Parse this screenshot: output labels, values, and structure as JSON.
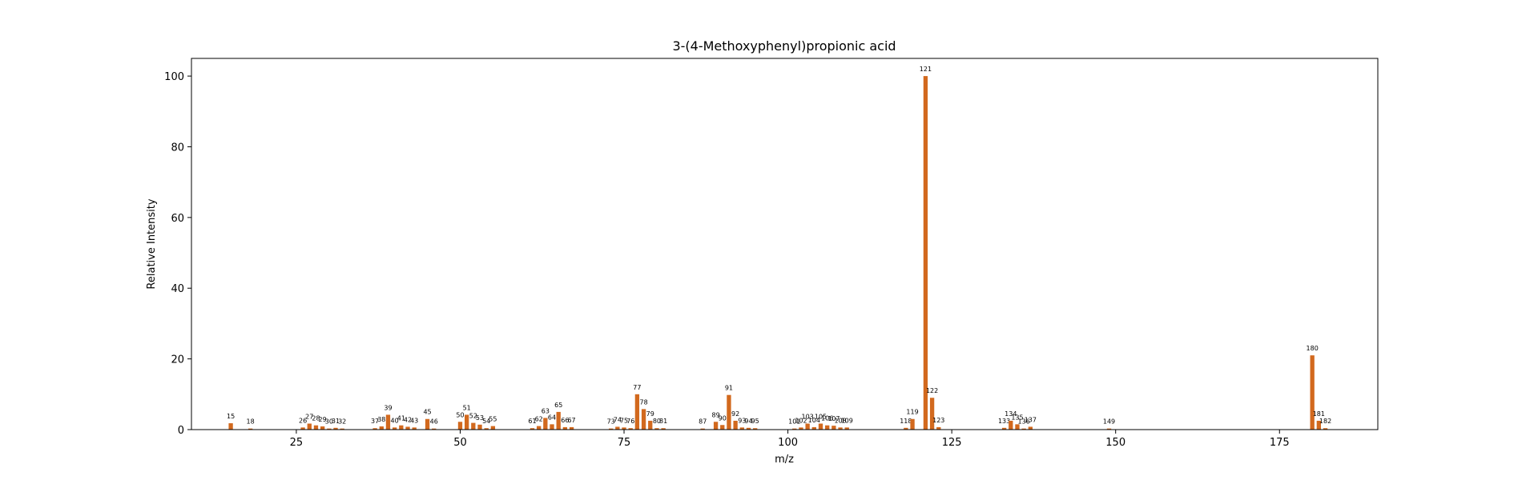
{
  "chart_data": {
    "type": "bar",
    "title": "3-(4-Methoxyphenyl)propionic acid",
    "xlabel": "m/z",
    "ylabel": "Relative Intensity",
    "xlim": [
      9,
      190
    ],
    "ylim": [
      0,
      105
    ],
    "xticks": [
      25,
      50,
      75,
      100,
      125,
      150,
      175
    ],
    "yticks": [
      0,
      20,
      40,
      60,
      80,
      100
    ],
    "grid": false,
    "bar_color": "#d2691e",
    "series": [
      {
        "points": [
          {
            "x": 15,
            "y": 1.8
          },
          {
            "x": 18,
            "y": 0.3
          },
          {
            "x": 26,
            "y": 0.6
          },
          {
            "x": 27,
            "y": 1.7
          },
          {
            "x": 28,
            "y": 1.2
          },
          {
            "x": 29,
            "y": 0.9
          },
          {
            "x": 30,
            "y": 0.3
          },
          {
            "x": 31,
            "y": 0.5
          },
          {
            "x": 32,
            "y": 0.3
          },
          {
            "x": 37,
            "y": 0.4
          },
          {
            "x": 38,
            "y": 0.9
          },
          {
            "x": 39,
            "y": 4.2
          },
          {
            "x": 40,
            "y": 0.6
          },
          {
            "x": 41,
            "y": 1.2
          },
          {
            "x": 42,
            "y": 0.8
          },
          {
            "x": 43,
            "y": 0.6
          },
          {
            "x": 45,
            "y": 3.0
          },
          {
            "x": 46,
            "y": 0.3
          },
          {
            "x": 50,
            "y": 2.2
          },
          {
            "x": 51,
            "y": 4.2
          },
          {
            "x": 52,
            "y": 1.9
          },
          {
            "x": 53,
            "y": 1.4
          },
          {
            "x": 54,
            "y": 0.4
          },
          {
            "x": 55,
            "y": 1.0
          },
          {
            "x": 61,
            "y": 0.4
          },
          {
            "x": 62,
            "y": 1.0
          },
          {
            "x": 63,
            "y": 3.3
          },
          {
            "x": 64,
            "y": 1.5
          },
          {
            "x": 65,
            "y": 5.0
          },
          {
            "x": 66,
            "y": 0.7
          },
          {
            "x": 67,
            "y": 0.7
          },
          {
            "x": 73,
            "y": 0.3
          },
          {
            "x": 74,
            "y": 0.8
          },
          {
            "x": 75,
            "y": 0.6
          },
          {
            "x": 76,
            "y": 0.4
          },
          {
            "x": 77,
            "y": 10.0
          },
          {
            "x": 78,
            "y": 5.8
          },
          {
            "x": 79,
            "y": 2.5
          },
          {
            "x": 80,
            "y": 0.4
          },
          {
            "x": 81,
            "y": 0.4
          },
          {
            "x": 87,
            "y": 0.3
          },
          {
            "x": 89,
            "y": 2.2
          },
          {
            "x": 90,
            "y": 1.3
          },
          {
            "x": 91,
            "y": 9.8
          },
          {
            "x": 92,
            "y": 2.5
          },
          {
            "x": 93,
            "y": 0.6
          },
          {
            "x": 94,
            "y": 0.5
          },
          {
            "x": 95,
            "y": 0.4
          },
          {
            "x": 101,
            "y": 0.3
          },
          {
            "x": 102,
            "y": 0.6
          },
          {
            "x": 103,
            "y": 1.7
          },
          {
            "x": 104,
            "y": 0.7
          },
          {
            "x": 105,
            "y": 1.7
          },
          {
            "x": 106,
            "y": 1.2
          },
          {
            "x": 107,
            "y": 1.1
          },
          {
            "x": 108,
            "y": 0.6
          },
          {
            "x": 109,
            "y": 0.6
          },
          {
            "x": 118,
            "y": 0.5
          },
          {
            "x": 119,
            "y": 3.0
          },
          {
            "x": 121,
            "y": 100.0
          },
          {
            "x": 122,
            "y": 9.0
          },
          {
            "x": 123,
            "y": 0.7
          },
          {
            "x": 133,
            "y": 0.5
          },
          {
            "x": 134,
            "y": 2.5
          },
          {
            "x": 135,
            "y": 1.5
          },
          {
            "x": 136,
            "y": 0.3
          },
          {
            "x": 137,
            "y": 0.8
          },
          {
            "x": 149,
            "y": 0.3
          },
          {
            "x": 180,
            "y": 21.0
          },
          {
            "x": 181,
            "y": 2.5
          },
          {
            "x": 182,
            "y": 0.4
          }
        ]
      }
    ]
  }
}
